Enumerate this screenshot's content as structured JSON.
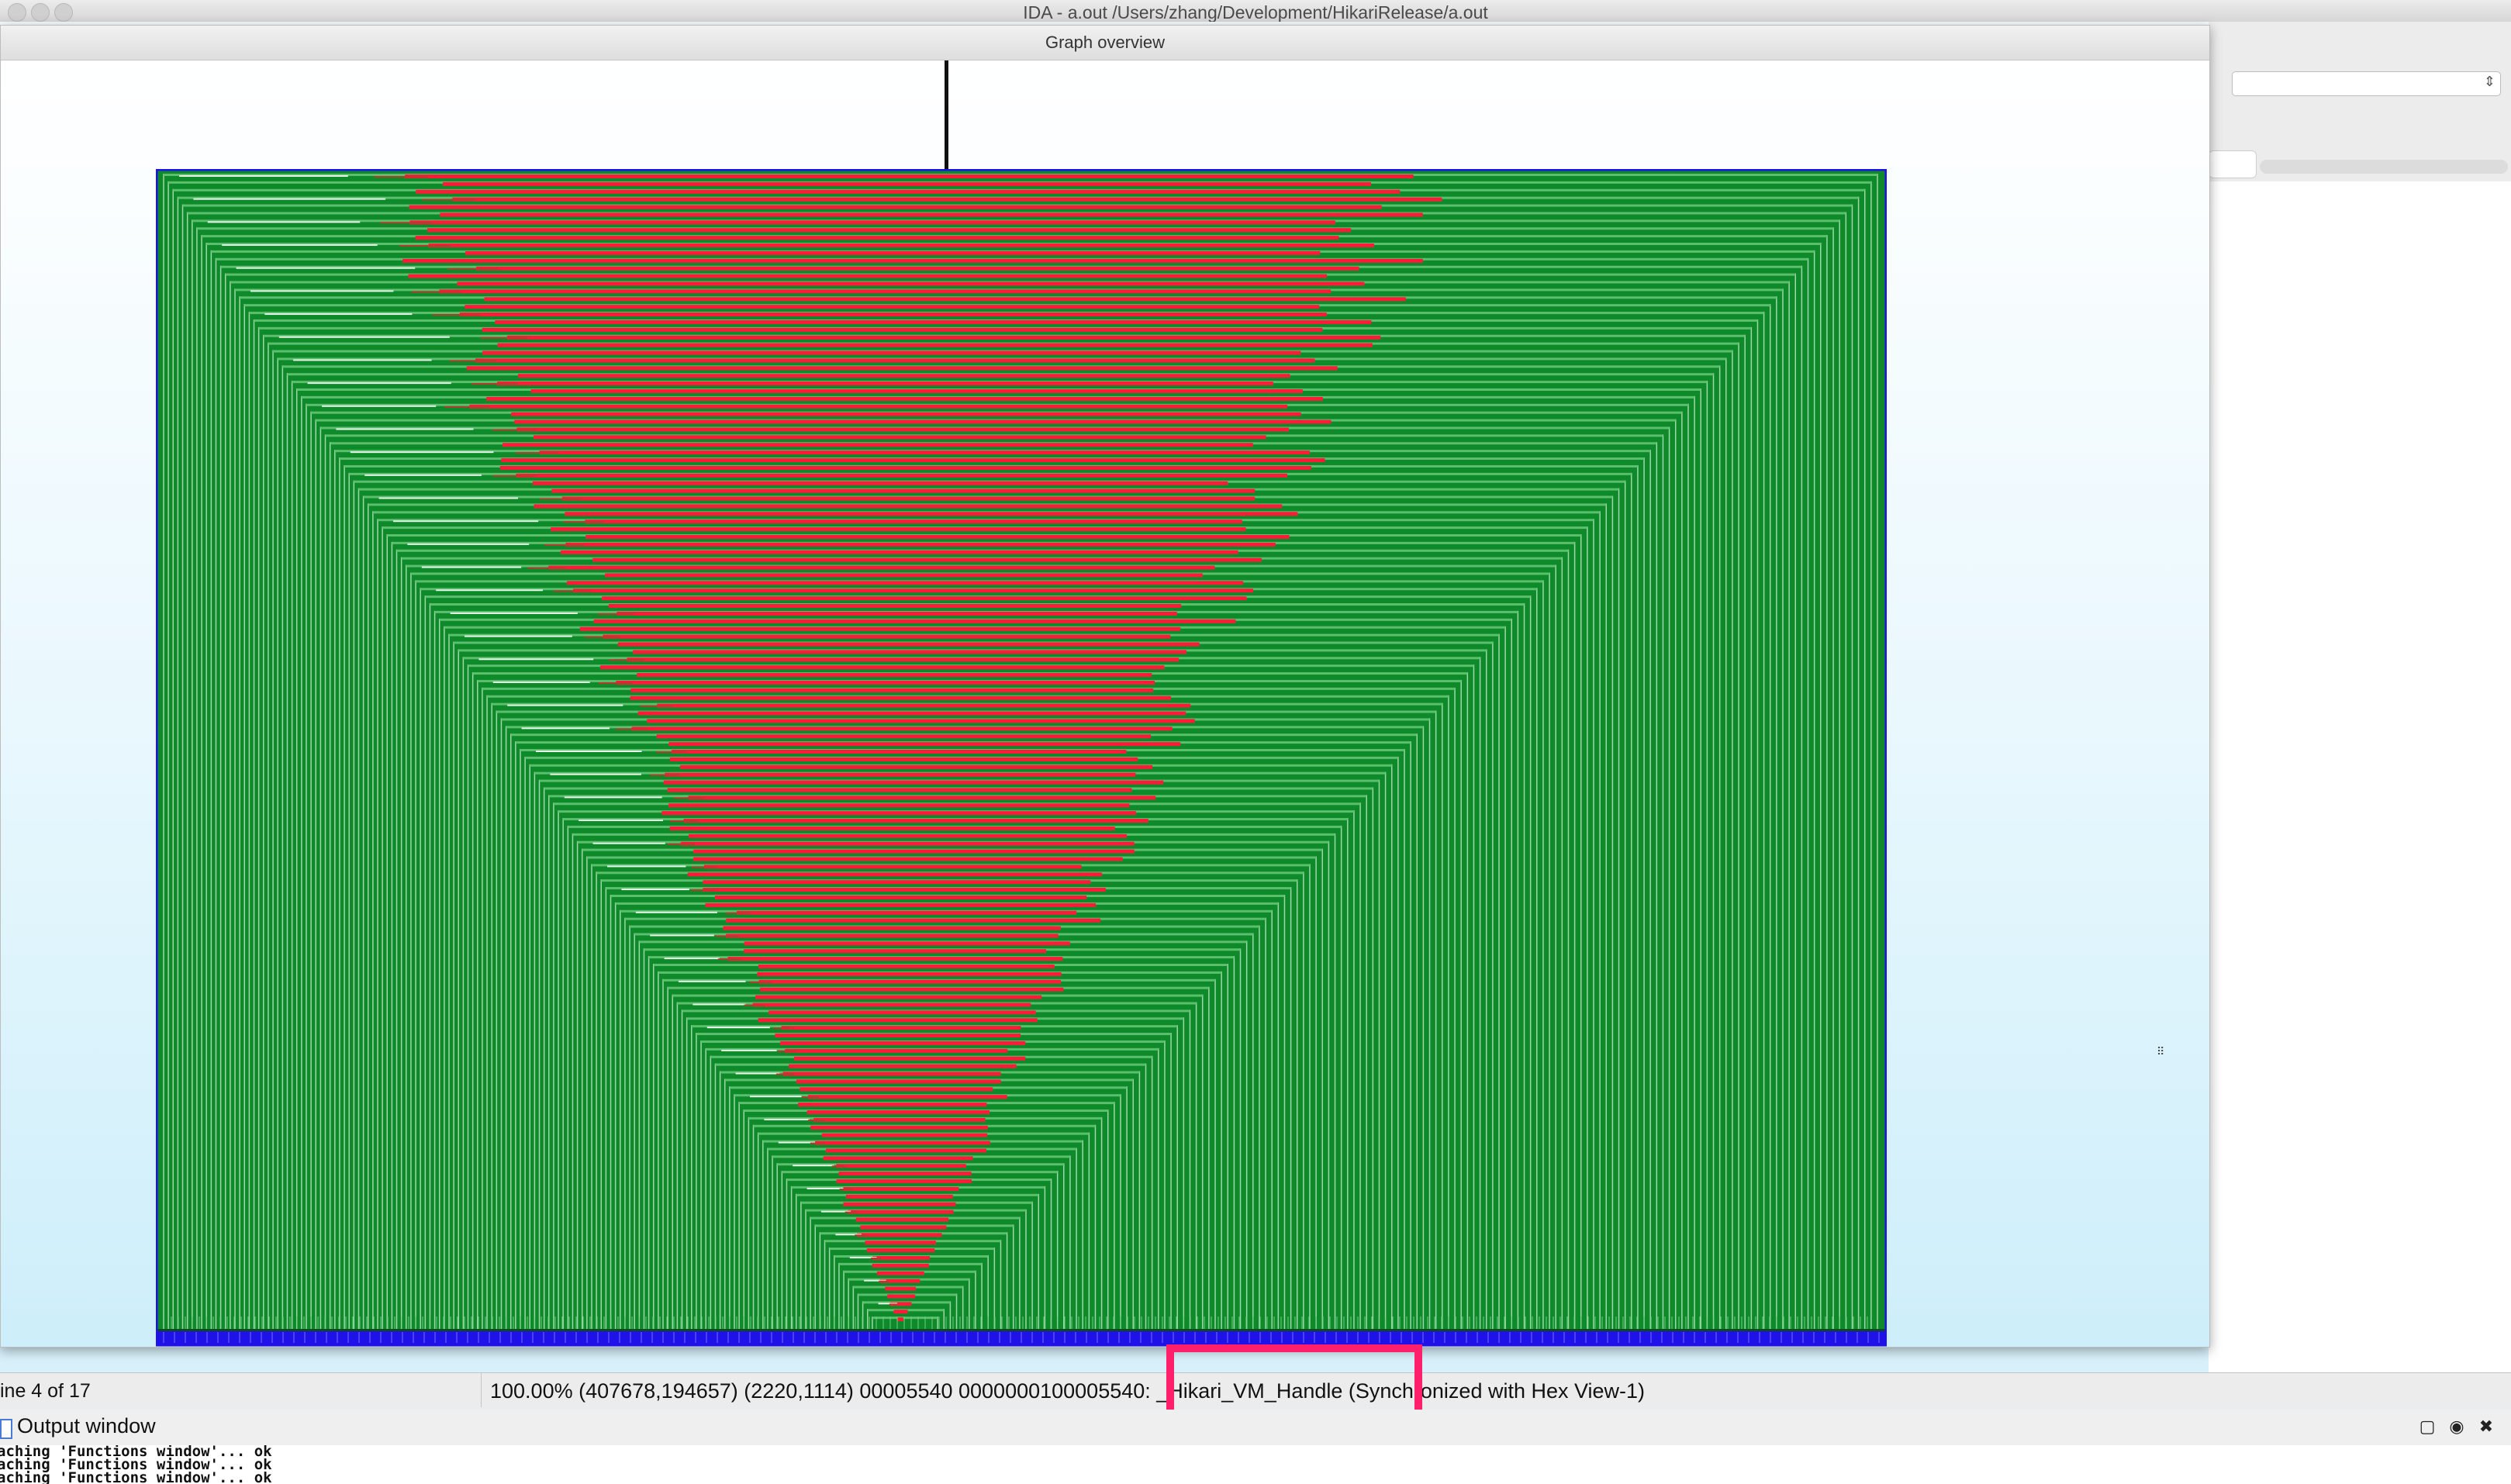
{
  "window": {
    "title": "IDA - a.out /Users/zhang/Development/HikariRelease/a.out"
  },
  "overview": {
    "title": "Graph overview"
  },
  "status": {
    "left": "ine 4 of 17",
    "main": "100.00%  (407678,194657)  (2220,1114)  00005540  0000000100005540: _Hikari_VM_Handle  (Synchronized with Hex View-1)"
  },
  "output": {
    "title": "Output window",
    "lines": [
      "aching 'Functions window'... ok",
      "aching 'Functions window'... ok",
      "aching 'Functions window'... ok"
    ]
  },
  "colors": {
    "node_green": "#0e8a2a",
    "node_red": "#ff1a3a",
    "edge_blue": "#1f12e8",
    "highlight": "#ff1f6b"
  },
  "icons": [
    "close-icon",
    "minimize-icon",
    "zoom-icon",
    "doc-icon",
    "restore-icon",
    "float-icon",
    "close-x-icon",
    "combo-arrows-icon"
  ]
}
